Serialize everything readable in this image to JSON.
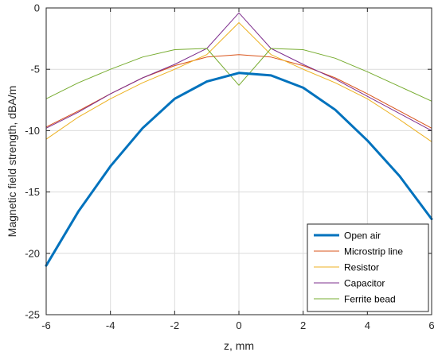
{
  "chart_data": {
    "type": "line",
    "xlabel": "z, mm",
    "ylabel": "Magnetic field strength, dBA/m",
    "xlim": [
      -6,
      6
    ],
    "ylim": [
      -25,
      0
    ],
    "xticks": [
      -6,
      -4,
      -2,
      0,
      2,
      4,
      6
    ],
    "yticks": [
      0,
      -5,
      -10,
      -15,
      -20,
      -25
    ],
    "xtick_labels": [
      "-6",
      "-4",
      "-2",
      "0",
      "2",
      "4",
      "6"
    ],
    "ytick_labels": [
      "0",
      "-5",
      "-10",
      "-15",
      "-20",
      "-25"
    ],
    "grid": true,
    "legend_position": "bottom-right",
    "series": [
      {
        "name": "Open air",
        "color": "#0072BD",
        "emphasis": "thick",
        "x": [
          -6,
          -5,
          -4,
          -3,
          -2,
          -1,
          0,
          1,
          2,
          3,
          4,
          5,
          6
        ],
        "y": [
          -21.0,
          -16.6,
          -12.9,
          -9.8,
          -7.4,
          -6.0,
          -5.3,
          -5.5,
          -6.5,
          -8.3,
          -10.8,
          -13.7,
          -17.2
        ]
      },
      {
        "name": "Microstrip line",
        "color": "#D95319",
        "emphasis": "thin",
        "x": [
          -6,
          -5,
          -4,
          -3,
          -2,
          -1,
          0,
          1,
          2,
          3,
          4,
          5,
          6
        ],
        "y": [
          -9.7,
          -8.4,
          -7.0,
          -5.7,
          -4.7,
          -4.0,
          -3.8,
          -4.0,
          -4.7,
          -5.7,
          -7.0,
          -8.4,
          -9.8
        ]
      },
      {
        "name": "Resistor",
        "color": "#EDB120",
        "emphasis": "thin",
        "x": [
          -6,
          -5,
          -4,
          -3,
          -2,
          -1,
          0,
          1,
          2,
          3,
          4,
          5,
          6
        ],
        "y": [
          -10.7,
          -8.9,
          -7.4,
          -6.1,
          -5.0,
          -3.8,
          -1.2,
          -3.8,
          -5.0,
          -6.1,
          -7.4,
          -9.1,
          -10.9
        ]
      },
      {
        "name": "Capacitor",
        "color": "#7E2F8E",
        "emphasis": "thin",
        "x": [
          -6,
          -5,
          -4,
          -3,
          -2,
          -1,
          0,
          1,
          2,
          3,
          4,
          5,
          6
        ],
        "y": [
          -9.8,
          -8.5,
          -7.0,
          -5.7,
          -4.6,
          -3.3,
          -0.4,
          -3.3,
          -4.6,
          -5.8,
          -7.2,
          -8.6,
          -10.0
        ]
      },
      {
        "name": "Ferrite bead",
        "color": "#77AC30",
        "emphasis": "thin",
        "x": [
          -6,
          -5,
          -4,
          -3,
          -2,
          -1,
          0,
          1,
          2,
          3,
          4,
          5,
          6
        ],
        "y": [
          -7.4,
          -6.1,
          -5.0,
          -4.0,
          -3.4,
          -3.3,
          -6.3,
          -3.3,
          -3.4,
          -4.1,
          -5.2,
          -6.4,
          -7.6
        ]
      }
    ]
  }
}
